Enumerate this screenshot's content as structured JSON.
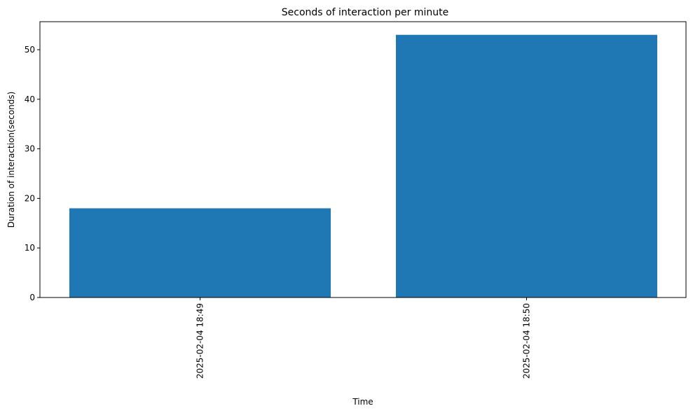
{
  "chart_data": {
    "type": "bar",
    "title": "Seconds of interaction per minute",
    "xlabel": "Time",
    "ylabel": "Duration of interaction(seconds)",
    "categories": [
      "2025-02-04 18:49",
      "2025-02-04 18:50"
    ],
    "values": [
      18,
      53
    ],
    "ylim": [
      0,
      55.65
    ],
    "yticks": [
      0,
      10,
      20,
      30,
      40,
      50
    ],
    "bar_color": "#1f77b4",
    "grid": false,
    "legend": "none",
    "xtick_rotation": "vertical"
  }
}
